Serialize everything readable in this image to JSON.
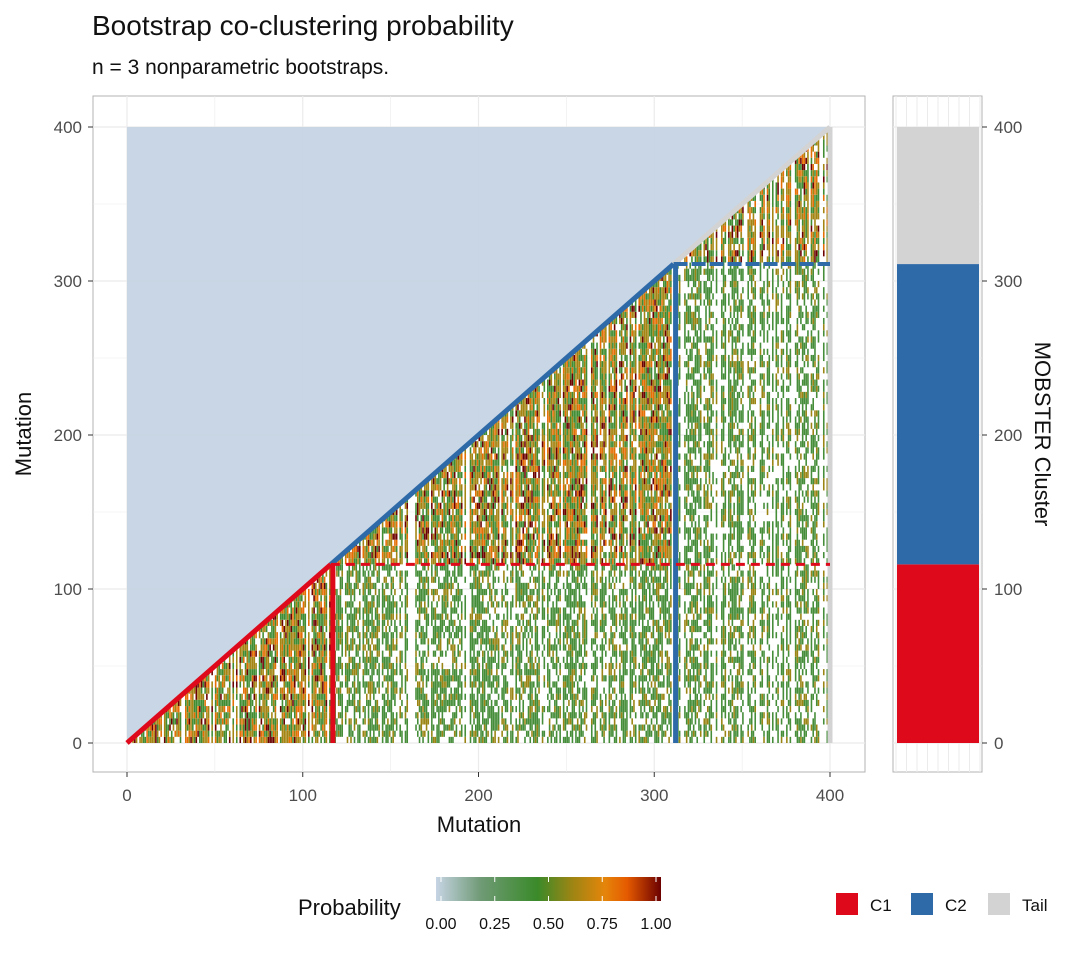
{
  "chart_data": {
    "type": "heatmap",
    "title": "Bootstrap co-clustering probability",
    "subtitle": "n = 3 nonparametric bootstraps.",
    "xlabel": "Mutation",
    "ylabel": "Mutation",
    "xlim": [
      0,
      400
    ],
    "ylim": [
      0,
      400
    ],
    "x_ticks": [
      "0",
      "100",
      "200",
      "300",
      "400"
    ],
    "y_ticks": [
      "0",
      "100",
      "200",
      "300",
      "400"
    ],
    "grid": true,
    "n_mutations": 400,
    "cluster_boundaries": [
      {
        "cluster": "C1",
        "start": 0,
        "end": 116
      },
      {
        "cluster": "C2",
        "start": 116,
        "end": 311
      },
      {
        "cluster": "Tail",
        "start": 311,
        "end": 400
      }
    ],
    "colorbar": {
      "title": "Probability",
      "ticks": [
        "0.00",
        "0.25",
        "0.50",
        "0.75",
        "1.00"
      ],
      "stops": [
        {
          "value": 0.0,
          "color": "#c6d4e4"
        },
        {
          "value": 0.2,
          "color": "#6f9a75"
        },
        {
          "value": 0.45,
          "color": "#3a8a2a"
        },
        {
          "value": 0.6,
          "color": "#9a8514"
        },
        {
          "value": 0.75,
          "color": "#e5850a"
        },
        {
          "value": 0.85,
          "color": "#e55a00"
        },
        {
          "value": 1.0,
          "color": "#6b0000"
        }
      ],
      "placement": "bottom"
    },
    "side_panel": {
      "ylabel": "MOBSTER Cluster",
      "y_ticks": [
        "0",
        "100",
        "200",
        "300",
        "400"
      ],
      "segments": [
        {
          "cluster": "C1",
          "start": 0,
          "end": 116,
          "color": "#de0a1c"
        },
        {
          "cluster": "C2",
          "start": 116,
          "end": 311,
          "color": "#2e6aa8"
        },
        {
          "cluster": "Tail",
          "start": 311,
          "end": 400,
          "color": "#d3d3d3"
        }
      ]
    },
    "legend": {
      "placement": "bottom-right",
      "entries": [
        {
          "label": "C1",
          "color": "#de0a1c"
        },
        {
          "label": "C2",
          "color": "#2e6aa8"
        },
        {
          "label": "Tail",
          "color": "#d3d3d3"
        }
      ]
    },
    "colors": {
      "background_cell": "#c6d4e4",
      "C1": "#de0a1c",
      "C2": "#2e6aa8",
      "Tail": "#d3d3d3"
    }
  }
}
